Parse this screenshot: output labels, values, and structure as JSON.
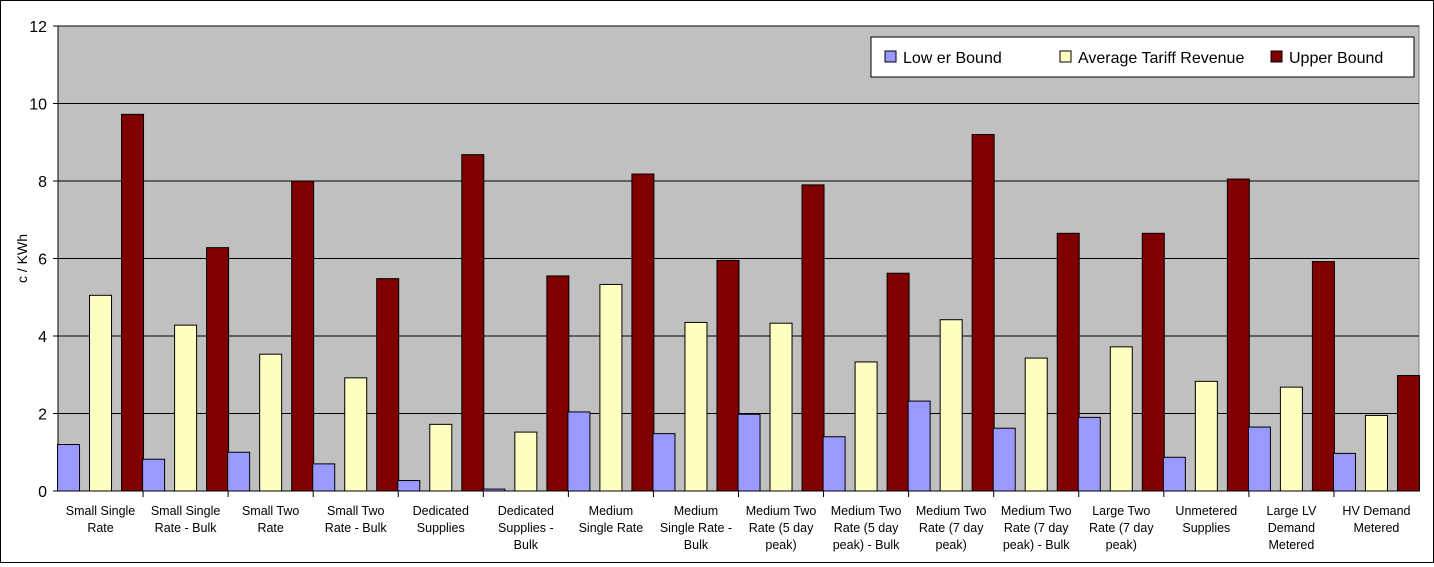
{
  "chart_data": {
    "type": "bar",
    "ylabel": "c / KWh",
    "ylim": [
      0,
      12
    ],
    "yticks": [
      0,
      2,
      4,
      6,
      8,
      10,
      12
    ],
    "grid": true,
    "legend_position": "top-right",
    "plot_background": "#c0c0c0",
    "categories": [
      [
        "Small Single",
        "Rate"
      ],
      [
        "Small Single",
        "Rate - Bulk"
      ],
      [
        "Small Two",
        "Rate"
      ],
      [
        "Small Two",
        "Rate - Bulk"
      ],
      [
        "Dedicated",
        "Supplies"
      ],
      [
        "Dedicated",
        "Supplies -",
        "Bulk"
      ],
      [
        "Medium",
        "Single Rate"
      ],
      [
        "Medium",
        "Single Rate -",
        "Bulk"
      ],
      [
        "Medium Two",
        "Rate (5 day",
        "peak)"
      ],
      [
        "Medium Two",
        "Rate (5 day",
        "peak) - Bulk"
      ],
      [
        "Medium Two",
        "Rate (7 day",
        "peak)"
      ],
      [
        "Medium Two",
        "Rate (7 day",
        "peak) - Bulk"
      ],
      [
        "Large Two",
        "Rate (7 day",
        "peak)"
      ],
      [
        "Unmetered",
        "Supplies"
      ],
      [
        "Large LV",
        "Demand",
        "Metered"
      ],
      [
        "HV Demand",
        "Metered"
      ]
    ],
    "series": [
      {
        "name": "Low er Bound",
        "color": "#9999ff",
        "values": [
          1.2,
          0.82,
          1.0,
          0.7,
          0.27,
          0.05,
          2.04,
          1.48,
          1.98,
          1.4,
          2.32,
          1.62,
          1.9,
          0.87,
          1.65,
          0.97
        ]
      },
      {
        "name": "Average Tariff Revenue",
        "color": "#ffffc0",
        "values": [
          5.05,
          4.28,
          3.53,
          2.92,
          1.72,
          1.52,
          5.33,
          4.35,
          4.33,
          3.33,
          4.42,
          3.43,
          3.72,
          2.83,
          2.68,
          1.95
        ]
      },
      {
        "name": "Upper Bound",
        "color": "#800000",
        "values": [
          9.72,
          6.28,
          8.0,
          5.48,
          8.68,
          5.55,
          8.18,
          5.95,
          7.9,
          5.62,
          9.2,
          6.65,
          6.65,
          8.05,
          5.92,
          2.98
        ]
      }
    ]
  }
}
